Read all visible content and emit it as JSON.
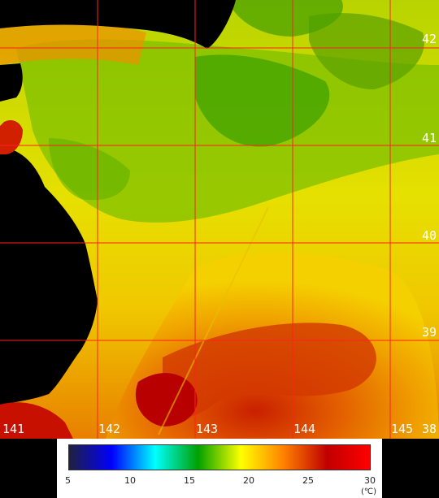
{
  "map": {
    "longitude_labels": [
      "141",
      "142",
      "143",
      "144",
      "145"
    ],
    "latitude_labels": [
      "42",
      "41",
      "40",
      "39",
      "38"
    ],
    "grid_color": "#ff2020"
  },
  "legend": {
    "ticks": [
      "5",
      "10",
      "15",
      "20",
      "25",
      "30"
    ],
    "unit": "(℃)",
    "colors": [
      "#202040",
      "#0000ff",
      "#00ffff",
      "#00a000",
      "#ffff00",
      "#ff8000",
      "#c00000",
      "#ff0000"
    ]
  }
}
